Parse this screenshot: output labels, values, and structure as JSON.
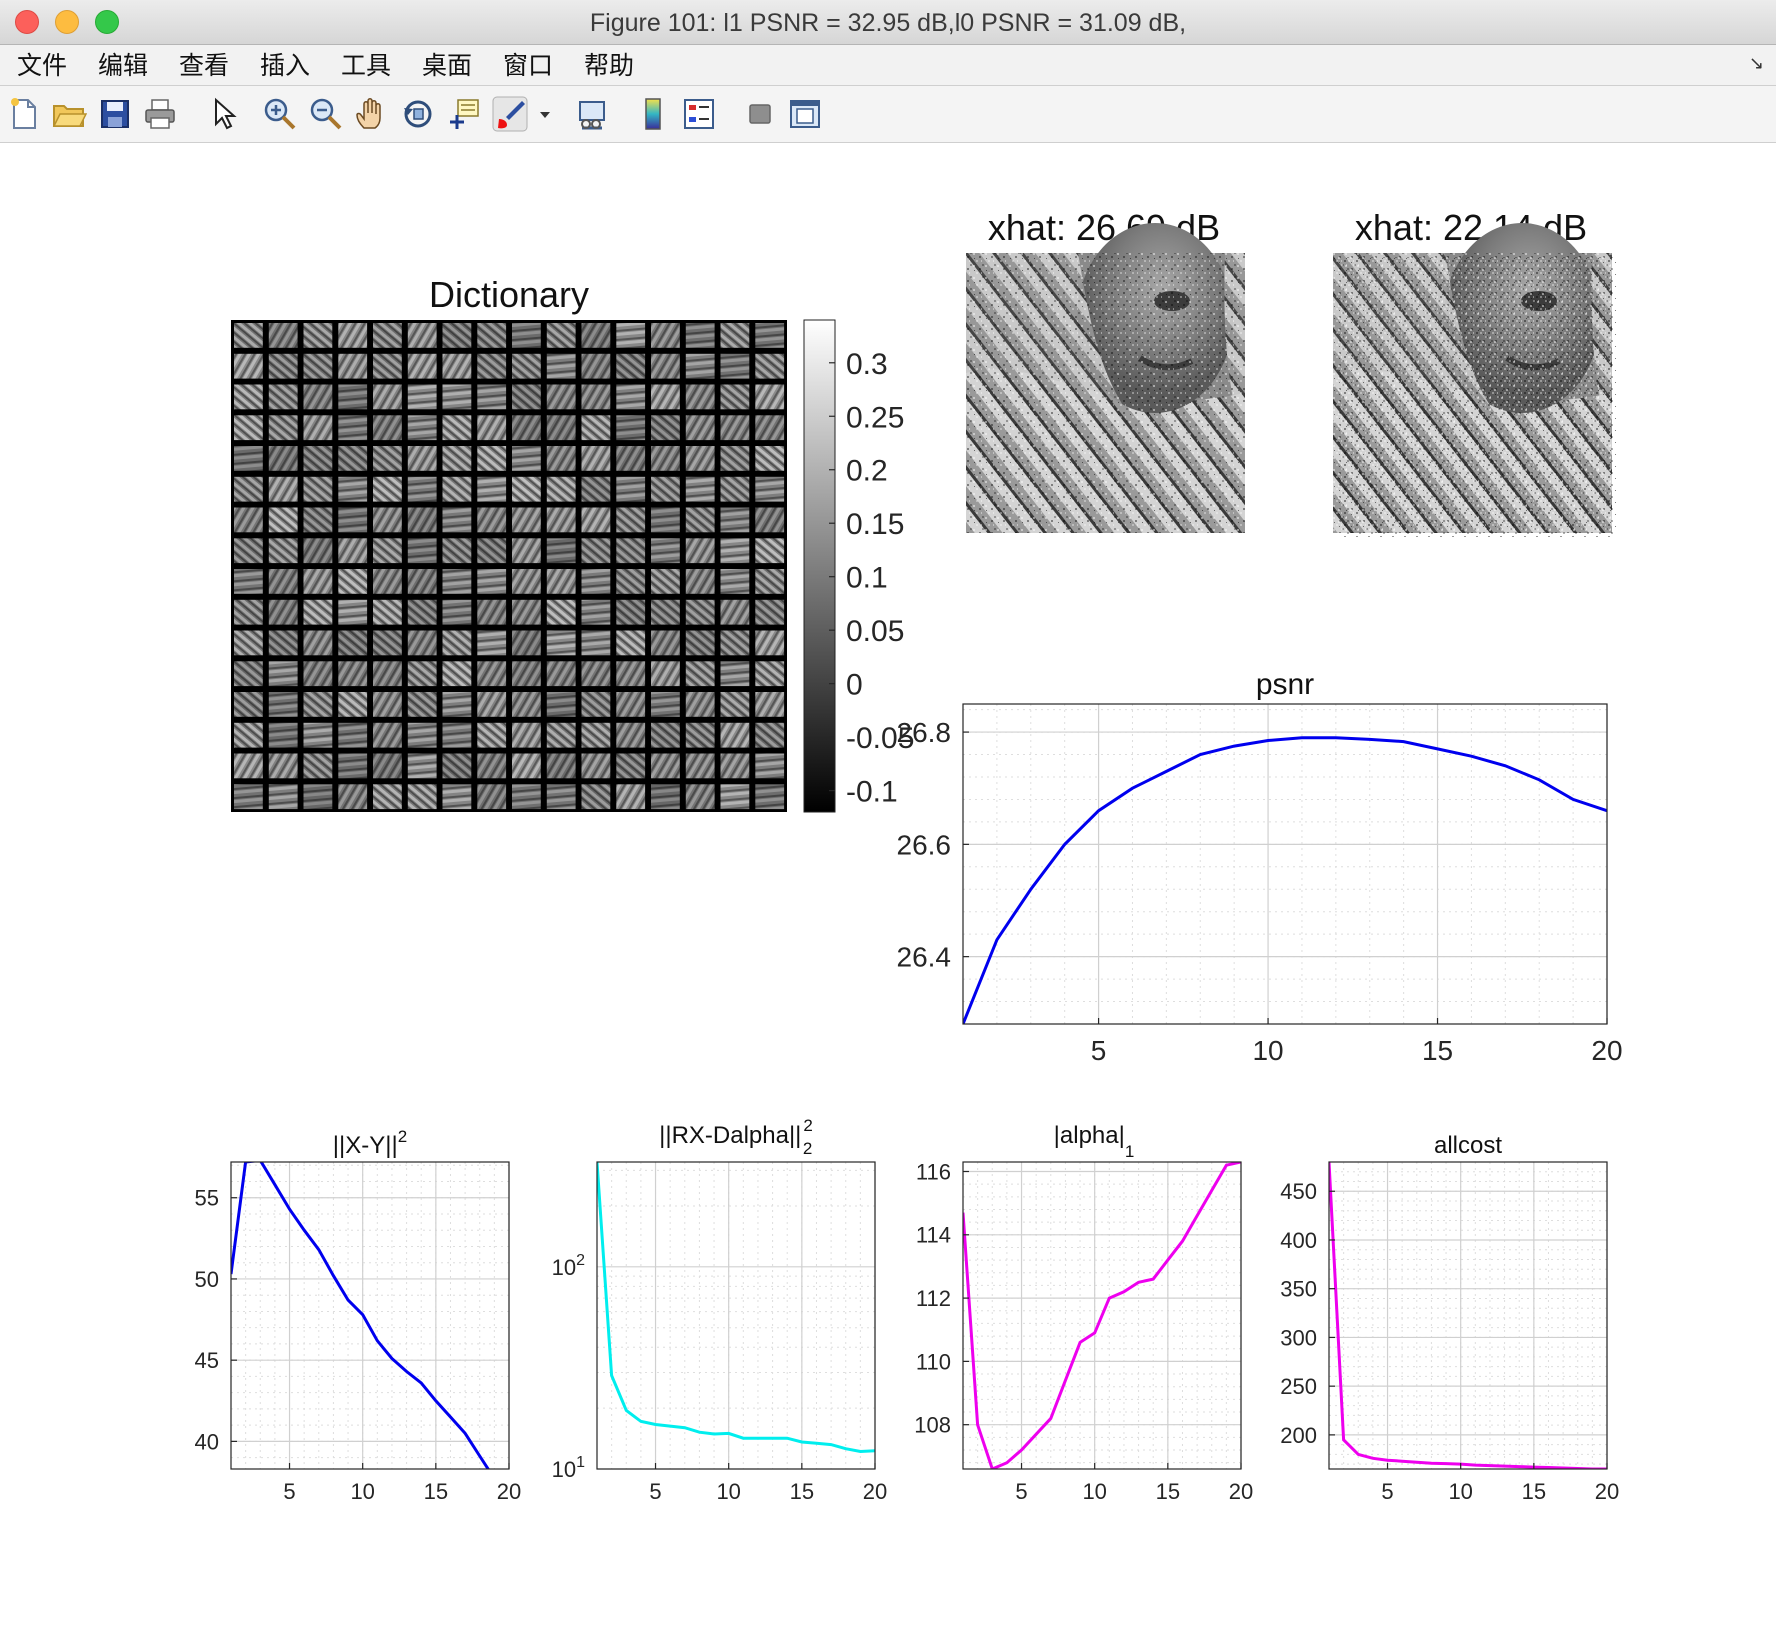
{
  "window": {
    "title": "Figure 101: l1 PSNR = 32.95 dB,l0 PSNR = 31.09 dB,"
  },
  "menu": {
    "items": [
      "文件",
      "编辑",
      "查看",
      "插入",
      "工具",
      "桌面",
      "窗口",
      "帮助"
    ]
  },
  "toolbar": {
    "icons": [
      "new-figure-icon",
      "open-file-icon",
      "save-icon",
      "print-icon",
      "pointer-icon",
      "zoom-in-icon",
      "zoom-out-icon",
      "pan-hand-icon",
      "rotate-3d-icon",
      "data-cursor-icon",
      "brush-icon",
      "brush-dropdown-icon",
      "link-plot-icon",
      "colorbar-icon",
      "legend-icon",
      "hide-plot-tools-icon",
      "show-plot-tools-icon"
    ]
  },
  "colors": {
    "blue": "#0000ee",
    "cyan": "#00eeee",
    "magenta": "#ee00ee",
    "axis": "#262626",
    "grid": "#dedede"
  },
  "chart_data": [
    {
      "id": "dictionary",
      "type": "heatmap",
      "title": "Dictionary",
      "grid": [
        16,
        16
      ],
      "colorbar": {
        "ticks": [
          "0.3",
          "0.25",
          "0.2",
          "0.15",
          "0.1",
          "0.05",
          "0",
          "-0.05",
          "-0.1"
        ],
        "range": [
          -0.12,
          0.34
        ]
      }
    },
    {
      "id": "xhat1",
      "type": "image",
      "title": "xhat: 26.69 dB"
    },
    {
      "id": "xhat2",
      "type": "image",
      "title": "xhat: 22.14 dB"
    },
    {
      "id": "psnr",
      "type": "line",
      "title": "psnr",
      "color": "#0000ee",
      "x": [
        1,
        2,
        3,
        4,
        5,
        6,
        7,
        8,
        9,
        10,
        11,
        12,
        13,
        14,
        15,
        16,
        17,
        18,
        19,
        20
      ],
      "y": [
        26.28,
        26.43,
        26.52,
        26.6,
        26.66,
        26.7,
        26.73,
        26.76,
        26.775,
        26.785,
        26.79,
        26.79,
        26.787,
        26.783,
        26.77,
        26.757,
        26.74,
        26.715,
        26.68,
        26.66
      ],
      "xlim": [
        1,
        20
      ],
      "ylim": [
        26.28,
        26.85
      ],
      "xticks": [
        5,
        10,
        15,
        20
      ],
      "yticks": [
        26.4,
        26.6,
        26.8
      ],
      "xtick_labels": [
        "5",
        "10",
        "15",
        "20"
      ],
      "ytick_labels": [
        "26.4",
        "26.6",
        "26.8"
      ]
    },
    {
      "id": "xy",
      "type": "line",
      "title_main": "||X-Y||",
      "title_sup": "2",
      "color": "#0000ee",
      "x": [
        1,
        2,
        3,
        4,
        5,
        6,
        7,
        8,
        9,
        10,
        11,
        12,
        13,
        14,
        15,
        16,
        17,
        18,
        19,
        20
      ],
      "y": [
        50.3,
        57.2,
        57.3,
        55.8,
        54.3,
        53.0,
        51.8,
        50.2,
        48.7,
        47.8,
        46.2,
        45.1,
        44.3,
        43.6,
        42.5,
        41.5,
        40.5,
        39.1,
        37.7,
        36.7
      ],
      "xlim": [
        1,
        20
      ],
      "ylim": [
        38.3,
        57.2
      ],
      "xticks": [
        5,
        10,
        15,
        20
      ],
      "yticks": [
        40,
        45,
        50,
        55
      ],
      "xtick_labels": [
        "5",
        "10",
        "15",
        "20"
      ],
      "ytick_labels": [
        "40",
        "45",
        "50",
        "55"
      ]
    },
    {
      "id": "rx",
      "type": "line",
      "scale": "log",
      "title_main": "||RX-Dalpha||",
      "title_sup": "2",
      "title_sub": "2",
      "color": "#00eeee",
      "x": [
        1,
        2,
        3,
        4,
        5,
        6,
        7,
        8,
        9,
        10,
        11,
        12,
        13,
        14,
        15,
        16,
        17,
        18,
        19,
        20
      ],
      "y": [
        330,
        29,
        19.5,
        17.2,
        16.6,
        16.3,
        16.0,
        15.2,
        14.9,
        15.0,
        14.2,
        14.2,
        14.2,
        14.2,
        13.6,
        13.4,
        13.2,
        12.6,
        12.2,
        12.3
      ],
      "xlim": [
        1,
        20
      ],
      "ylim": [
        10,
        330
      ],
      "xticks": [
        5,
        10,
        15,
        20
      ],
      "xtick_labels": [
        "5",
        "10",
        "15",
        "20"
      ],
      "ytick_values": [
        10,
        100
      ],
      "ytick_bases": [
        "10",
        "10"
      ],
      "ytick_exps": [
        "1",
        "2"
      ]
    },
    {
      "id": "alpha",
      "type": "line",
      "title_main": "|alpha|",
      "title_sub": "1",
      "color": "#ee00ee",
      "x": [
        1,
        2,
        3,
        4,
        5,
        6,
        7,
        8,
        9,
        10,
        11,
        12,
        13,
        14,
        15,
        16,
        17,
        18,
        19,
        20
      ],
      "y": [
        114.7,
        108.0,
        106.6,
        106.8,
        107.2,
        107.7,
        108.2,
        109.4,
        110.6,
        110.9,
        112.0,
        112.2,
        112.5,
        112.6,
        113.2,
        113.8,
        114.6,
        115.4,
        116.2,
        116.3
      ],
      "xlim": [
        1,
        20
      ],
      "ylim": [
        106.6,
        116.3
      ],
      "xticks": [
        5,
        10,
        15,
        20
      ],
      "yticks": [
        108,
        110,
        112,
        114,
        116
      ],
      "xtick_labels": [
        "5",
        "10",
        "15",
        "20"
      ],
      "ytick_labels": [
        "108",
        "110",
        "112",
        "114",
        "116"
      ]
    },
    {
      "id": "allcost",
      "type": "line",
      "title": "allcost",
      "color": "#ee00ee",
      "x": [
        1,
        2,
        3,
        4,
        5,
        6,
        7,
        8,
        9,
        10,
        11,
        12,
        13,
        14,
        15,
        16,
        17,
        18,
        19,
        20
      ],
      "y": [
        480,
        195,
        180,
        176,
        174,
        173,
        172,
        171,
        170.5,
        170,
        169,
        168.5,
        168,
        167.5,
        167,
        166.5,
        166,
        165.5,
        165,
        165
      ],
      "xlim": [
        1,
        20
      ],
      "ylim": [
        165,
        480
      ],
      "xticks": [
        5,
        10,
        15,
        20
      ],
      "yticks": [
        200,
        250,
        300,
        350,
        400,
        450
      ],
      "xtick_labels": [
        "5",
        "10",
        "15",
        "20"
      ],
      "ytick_labels": [
        "200",
        "250",
        "300",
        "350",
        "400",
        "450"
      ]
    }
  ]
}
